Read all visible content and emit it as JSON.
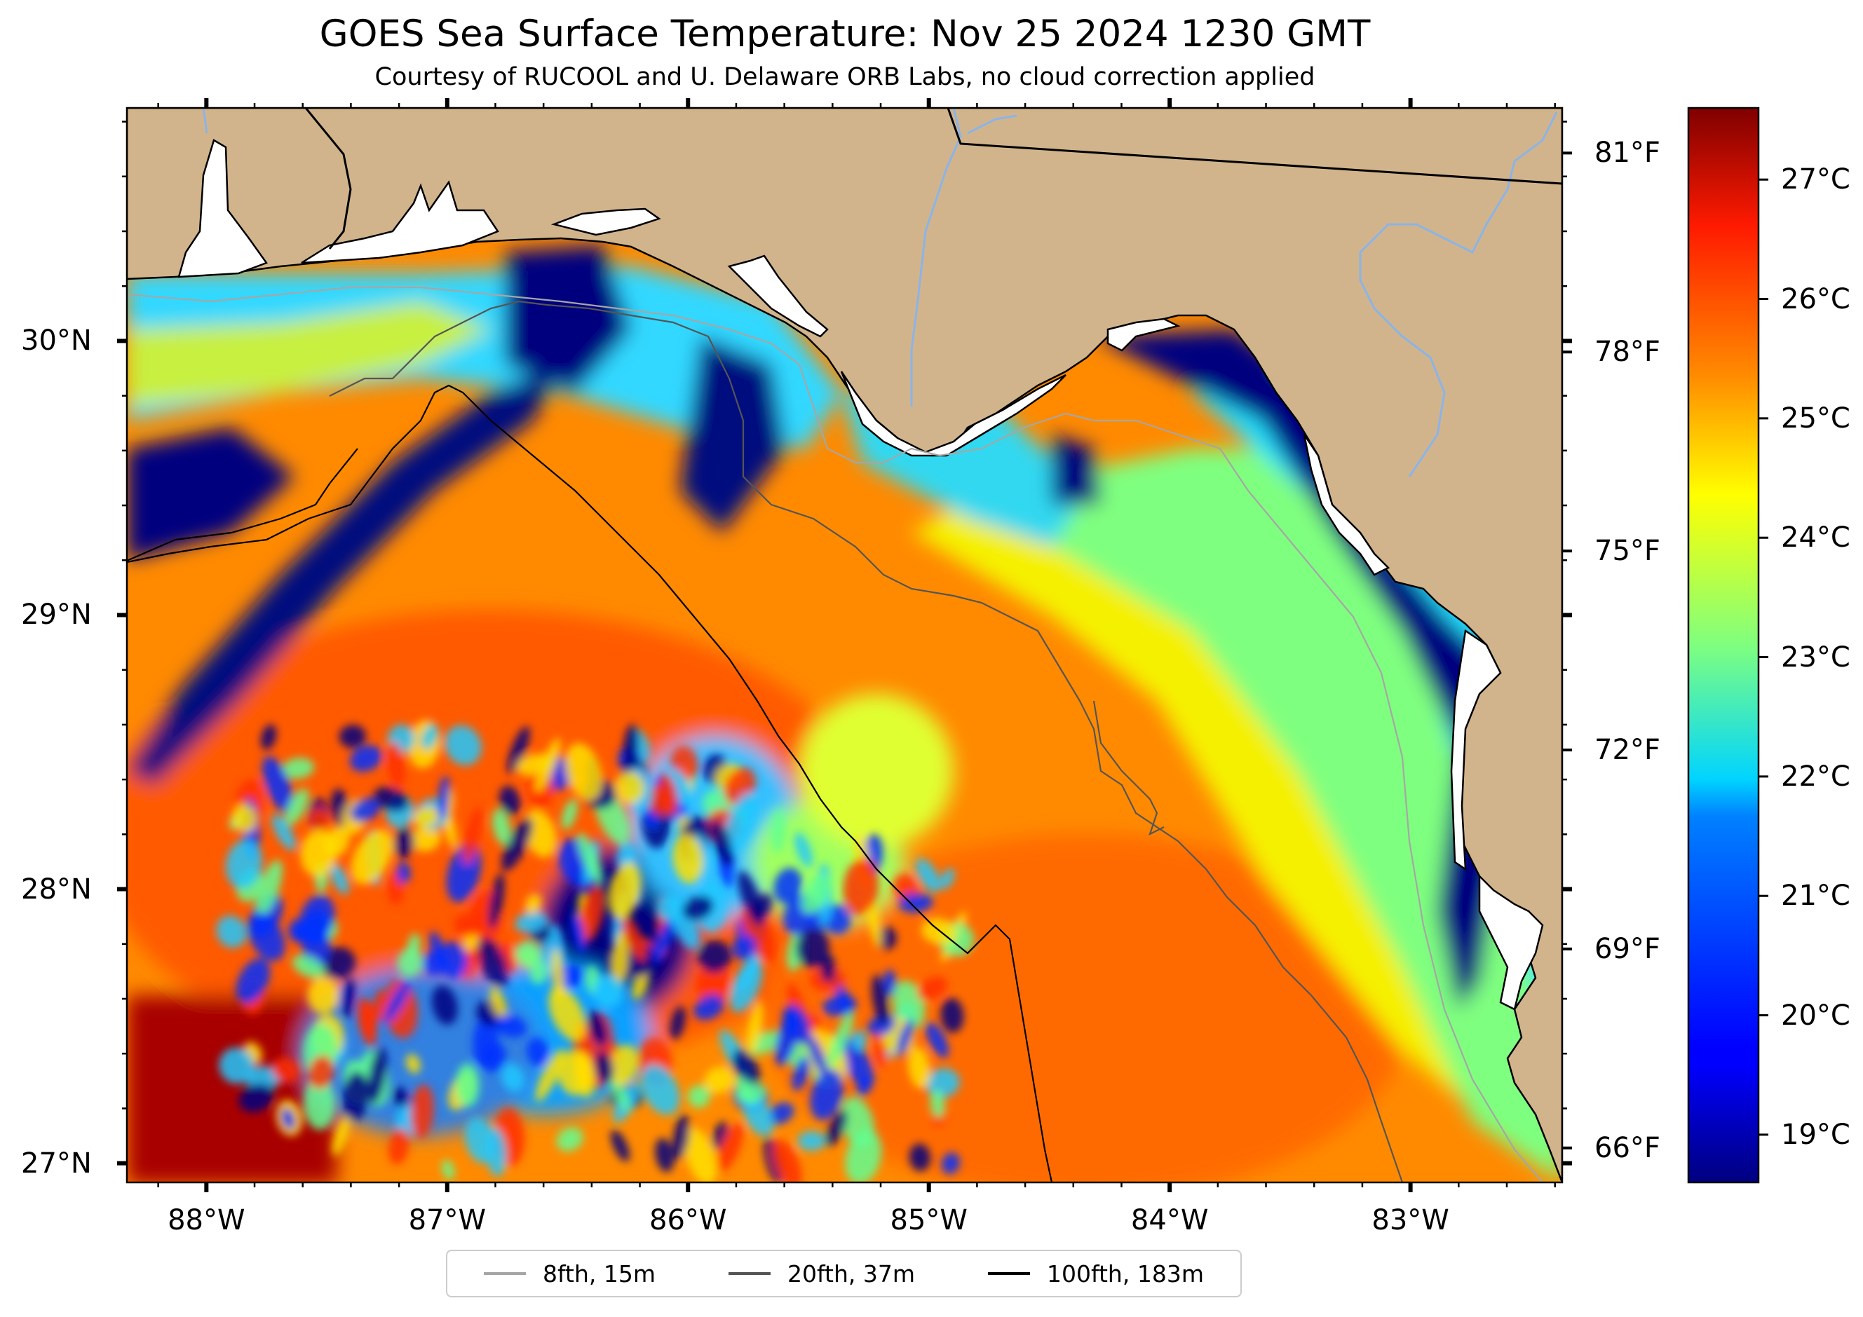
{
  "chart_data": {
    "type": "heatmap",
    "title": "GOES Sea Surface Temperature: Nov 25 2024 1230 GMT",
    "subtitle": "Courtesy of RUCOOL and U. Delaware ORB Labs, no cloud correction applied",
    "xlim": [
      -88.33,
      -82.37
    ],
    "ylim": [
      26.93,
      30.85
    ],
    "lon_ticks": [
      "88°W",
      "87°W",
      "86°W",
      "85°W",
      "84°W",
      "83°W"
    ],
    "lat_ticks": [
      "27°N",
      "28°N",
      "29°N",
      "30°N"
    ],
    "fahrenheit_ticks": [
      "66°F",
      "69°F",
      "72°F",
      "75°F",
      "78°F",
      "81°F"
    ],
    "colorbar": {
      "range_c": [
        18.6,
        27.6
      ],
      "ticks": [
        "19°C",
        "20°C",
        "21°C",
        "22°C",
        "23°C",
        "24°C",
        "25°C",
        "26°C",
        "27°C"
      ],
      "colormap": "jet"
    },
    "legend": {
      "placement": "bottom-center",
      "entries": [
        {
          "label": "8fth, 15m",
          "color": "#a6a6a6"
        },
        {
          "label": "20fth, 37m",
          "color": "#555555"
        },
        {
          "label": "100fth, 183m",
          "color": "#000000"
        }
      ]
    },
    "colors": {
      "land": "#d2b48c",
      "no_data": "#ffffff",
      "rivers": "#8ab4e8",
      "coastline": "#000000"
    }
  }
}
